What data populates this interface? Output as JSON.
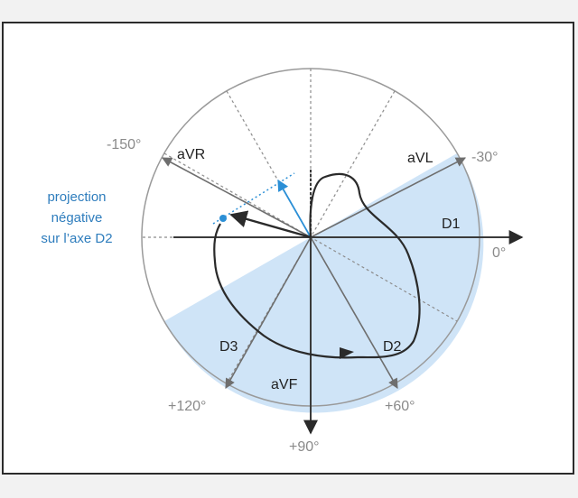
{
  "diagram": {
    "leads": {
      "aVR": "aVR",
      "aVL": "aVL",
      "D1": "D1",
      "D2": "D2",
      "D3": "D3",
      "aVF": "aVF"
    },
    "angles": {
      "m150": "-150°",
      "m30": "-30°",
      "zero": "0°",
      "p60": "+60°",
      "p90": "+90°",
      "p120": "+120°"
    },
    "note": {
      "line1": "projection",
      "line2": "négative",
      "line3": "sur l’axe D2"
    },
    "colors": {
      "positive_region": "#cfe4f7",
      "projection": "#2b8fd6",
      "loop": "#2a2a2a",
      "axes": "#6e6e6e",
      "dashed": "#8c8c8c"
    }
  }
}
